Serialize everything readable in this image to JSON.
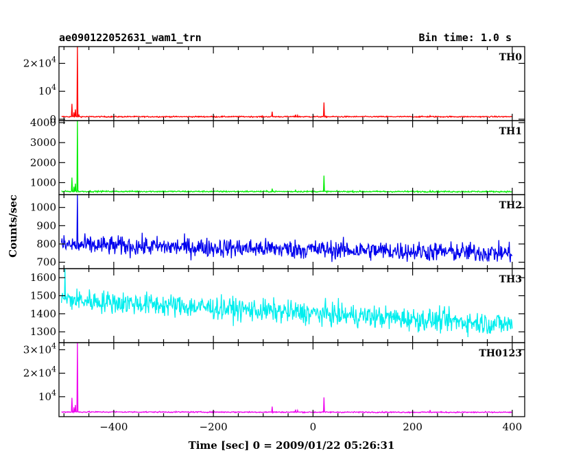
{
  "header": {
    "title": "ae090122052631_wam1_trn",
    "bin_time": "Bin time: 1.0 s"
  },
  "chart_data": {
    "type": "line",
    "xlabel": "Time [sec] 0 = 2009/01/22 05:26:31",
    "ylabel": "Counts/sec",
    "xlim": [
      -510,
      425
    ],
    "x_ticks": [
      -400,
      -200,
      0,
      200,
      400
    ],
    "x_tick_labels": [
      "−400",
      "−200",
      "0",
      "200",
      "400"
    ],
    "panels": [
      {
        "name": "TH0",
        "color": "#ff0000",
        "ylim": [
          -500,
          26000
        ],
        "y_ticks": [
          0,
          10000,
          20000
        ],
        "y_tick_labels": [
          {
            "base": "0",
            "exp": ""
          },
          {
            "base": "10",
            "exp": "4"
          },
          {
            "base": "2×10",
            "exp": "4"
          }
        ],
        "baseline": 900,
        "noise": 150,
        "trend": 0,
        "spikes": [
          {
            "t": -484,
            "v": 5500
          },
          {
            "t": -480,
            "v": 2500
          },
          {
            "t": -477,
            "v": 3500
          },
          {
            "t": -473,
            "v": 26000
          },
          {
            "t": -470,
            "v": 1500
          },
          {
            "t": -82,
            "v": 2700
          },
          {
            "t": -35,
            "v": 1600
          },
          {
            "t": -31,
            "v": 1400
          },
          {
            "t": 22,
            "v": 6000
          },
          {
            "t": 235,
            "v": 1300
          }
        ]
      },
      {
        "name": "TH1",
        "color": "#00ee00",
        "ylim": [
          400,
          4100
        ],
        "y_ticks": [
          1000,
          2000,
          3000,
          4000
        ],
        "y_tick_labels": [
          {
            "base": "1000",
            "exp": ""
          },
          {
            "base": "2000",
            "exp": ""
          },
          {
            "base": "3000",
            "exp": ""
          },
          {
            "base": "4000",
            "exp": ""
          }
        ],
        "baseline": 560,
        "noise": 25,
        "trend": -10,
        "spikes": [
          {
            "t": -484,
            "v": 1250
          },
          {
            "t": -480,
            "v": 800
          },
          {
            "t": -477,
            "v": 950
          },
          {
            "t": -473,
            "v": 4100
          },
          {
            "t": -82,
            "v": 700
          },
          {
            "t": -35,
            "v": 620
          },
          {
            "t": 22,
            "v": 1350
          },
          {
            "t": 235,
            "v": 600
          }
        ]
      },
      {
        "name": "TH2",
        "color": "#0000ee",
        "ylim": [
          665,
          1070
        ],
        "y_ticks": [
          700,
          800,
          900,
          1000
        ],
        "y_tick_labels": [
          {
            "base": "700",
            "exp": ""
          },
          {
            "base": "800",
            "exp": ""
          },
          {
            "base": "900",
            "exp": ""
          },
          {
            "base": "1000",
            "exp": ""
          }
        ],
        "baseline": 795,
        "noise": 38,
        "trend": -45,
        "spikes": [
          {
            "t": -473,
            "v": 1070
          }
        ]
      },
      {
        "name": "TH3",
        "color": "#00eeee",
        "ylim": [
          1240,
          1650
        ],
        "y_ticks": [
          1300,
          1400,
          1500,
          1600
        ],
        "y_tick_labels": [
          {
            "base": "1300",
            "exp": ""
          },
          {
            "base": "1400",
            "exp": ""
          },
          {
            "base": "1500",
            "exp": ""
          },
          {
            "base": "1600",
            "exp": ""
          }
        ],
        "baseline": 1480,
        "noise": 45,
        "trend": -140,
        "spikes": [
          {
            "t": -498,
            "v": 1650
          }
        ]
      },
      {
        "name": "TH0123",
        "color": "#ee00ee",
        "ylim": [
          1500,
          33000
        ],
        "y_ticks": [
          10000,
          20000,
          30000
        ],
        "y_tick_labels": [
          {
            "base": "10",
            "exp": "4"
          },
          {
            "base": "2×10",
            "exp": "4"
          },
          {
            "base": "3×10",
            "exp": "4"
          }
        ],
        "baseline": 3500,
        "noise": 180,
        "trend": -150,
        "spikes": [
          {
            "t": -484,
            "v": 9500
          },
          {
            "t": -480,
            "v": 5500
          },
          {
            "t": -477,
            "v": 6500
          },
          {
            "t": -473,
            "v": 33000
          },
          {
            "t": -82,
            "v": 5800
          },
          {
            "t": -35,
            "v": 4500
          },
          {
            "t": -31,
            "v": 4200
          },
          {
            "t": 22,
            "v": 9700
          },
          {
            "t": 235,
            "v": 4300
          }
        ]
      }
    ]
  }
}
